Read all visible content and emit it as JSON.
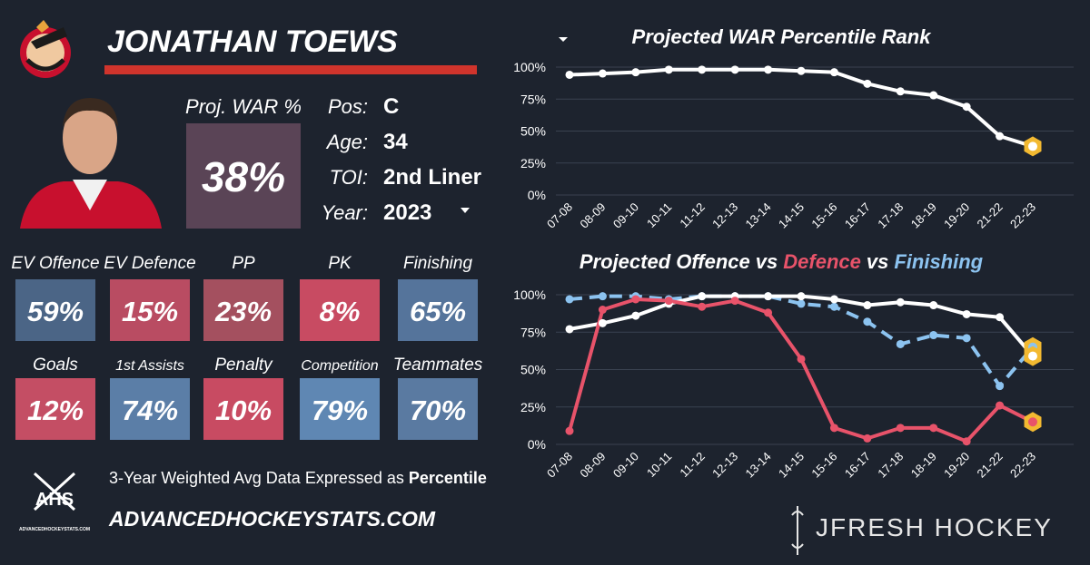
{
  "player": {
    "name": "JONATHAN TOEWS",
    "war_label": "Proj. WAR %",
    "war_value": "38%",
    "info": [
      {
        "label": "Pos:",
        "value": "C"
      },
      {
        "label": "Age:",
        "value": "34"
      },
      {
        "label": "TOI:",
        "value": "2nd Liner"
      },
      {
        "label": "Year:",
        "value": "2023"
      }
    ],
    "stats": [
      {
        "label": "EV Offence",
        "value": "59%",
        "color": "#4b6586"
      },
      {
        "label": "EV Defence",
        "value": "15%",
        "color": "#b94c62"
      },
      {
        "label": "PP",
        "value": "23%",
        "color": "#a4505f"
      },
      {
        "label": "PK",
        "value": "8%",
        "color": "#c84b62"
      },
      {
        "label": "Finishing",
        "value": "65%",
        "color": "#55749b"
      },
      {
        "label": "Goals",
        "value": "12%",
        "color": "#c44e64"
      },
      {
        "label": "1st Assists",
        "value": "74%",
        "color": "#5b7ea7"
      },
      {
        "label": "Penalty",
        "value": "10%",
        "color": "#c84b62"
      },
      {
        "label": "Competition",
        "value": "79%",
        "color": "#5f87b3"
      },
      {
        "label": "Teammates",
        "value": "70%",
        "color": "#5a7aa1"
      }
    ]
  },
  "footer": {
    "logo_text": "AHS",
    "logo_url": "ADVANCEDHOCKEYSTATS.COM",
    "note": "3-Year Weighted Avg Data Expressed as",
    "note_bold": "Percentile",
    "site": "ADVANCEDHOCKEYSTATS.COM",
    "brand": "JFRESH HOCKEY"
  },
  "chart_data": [
    {
      "type": "line",
      "title": "Projected WAR Percentile Rank",
      "categories": [
        "07-08",
        "08-09",
        "09-10",
        "10-11",
        "11-12",
        "12-13",
        "13-14",
        "14-15",
        "15-16",
        "16-17",
        "17-18",
        "18-19",
        "19-20",
        "21-22",
        "22-23"
      ],
      "series": [
        {
          "color": "#ffffff",
          "values": [
            94,
            95,
            96,
            98,
            98,
            98,
            98,
            97,
            96,
            87,
            81,
            78,
            69,
            46,
            38
          ]
        }
      ],
      "ylim": [
        0,
        100
      ],
      "yticks": [
        {
          "value": 0,
          "label": "0%"
        },
        {
          "value": 25,
          "label": "25%"
        },
        {
          "value": 50,
          "label": "50%"
        },
        {
          "value": 75,
          "label": "75%"
        },
        {
          "value": 100,
          "label": "100%"
        }
      ],
      "grid": true,
      "highlight_last": "#f2b931"
    },
    {
      "type": "line",
      "title": [
        {
          "text": "Projected Offence",
          "color": "#ffffff"
        },
        {
          "text": "vs",
          "color": "#ffffff"
        },
        {
          "text": "Defence",
          "color": "#e8536a"
        },
        {
          "text": "vs",
          "color": "#ffffff"
        },
        {
          "text": "Finishing",
          "color": "#8cc3f0"
        }
      ],
      "categories": [
        "07-08",
        "08-09",
        "09-10",
        "10-11",
        "11-12",
        "12-13",
        "13-14",
        "14-15",
        "15-16",
        "16-17",
        "17-18",
        "18-19",
        "19-20",
        "21-22",
        "22-23"
      ],
      "series": [
        {
          "color": "#8cc3f0",
          "dashed": true,
          "values": [
            97,
            99,
            99,
            97,
            99,
            99,
            99,
            94,
            92,
            82,
            67,
            73,
            71,
            39,
            65
          ]
        },
        {
          "color": "#ffffff",
          "values": [
            77,
            81,
            86,
            94,
            99,
            99,
            99,
            99,
            97,
            93,
            95,
            93,
            87,
            85,
            59
          ]
        },
        {
          "color": "#e8536a",
          "values": [
            9,
            90,
            97,
            96,
            92,
            96,
            88,
            57,
            11,
            4,
            11,
            11,
            2,
            26,
            15
          ]
        }
      ],
      "ylim": [
        0,
        100
      ],
      "yticks": [
        {
          "value": 0,
          "label": "0%"
        },
        {
          "value": 25,
          "label": "25%"
        },
        {
          "value": 50,
          "label": "50%"
        },
        {
          "value": 75,
          "label": "75%"
        },
        {
          "value": 100,
          "label": "100%"
        }
      ],
      "grid": true,
      "highlight_last": "#f2b931"
    }
  ]
}
